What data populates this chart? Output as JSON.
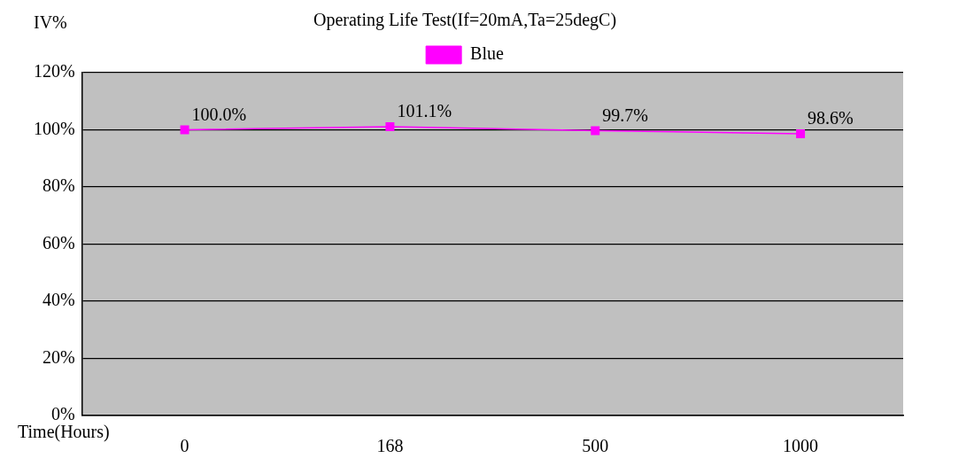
{
  "chart_data": {
    "type": "line",
    "title": "Operating Life Test(If=20mA,Ta=25degC)",
    "xlabel": "Time(Hours)",
    "ylabel": "IV%",
    "categories": [
      "0",
      "168",
      "500",
      "1000"
    ],
    "series": [
      {
        "name": "Blue",
        "color": "#ff00ff",
        "values": [
          100.0,
          101.1,
          99.7,
          98.6
        ],
        "value_labels": [
          "100.0%",
          "101.1%",
          "99.7%",
          "98.6%"
        ]
      }
    ],
    "ylim": [
      0,
      120
    ],
    "yticks": [
      {
        "value": 0,
        "label": "0%"
      },
      {
        "value": 20,
        "label": "20%"
      },
      {
        "value": 40,
        "label": "40%"
      },
      {
        "value": 60,
        "label": "60%"
      },
      {
        "value": 80,
        "label": "80%"
      },
      {
        "value": 100,
        "label": "100%"
      },
      {
        "value": 120,
        "label": "120%"
      }
    ],
    "grid": "y",
    "legend": "top",
    "marker": "square",
    "line_style": "solid"
  }
}
